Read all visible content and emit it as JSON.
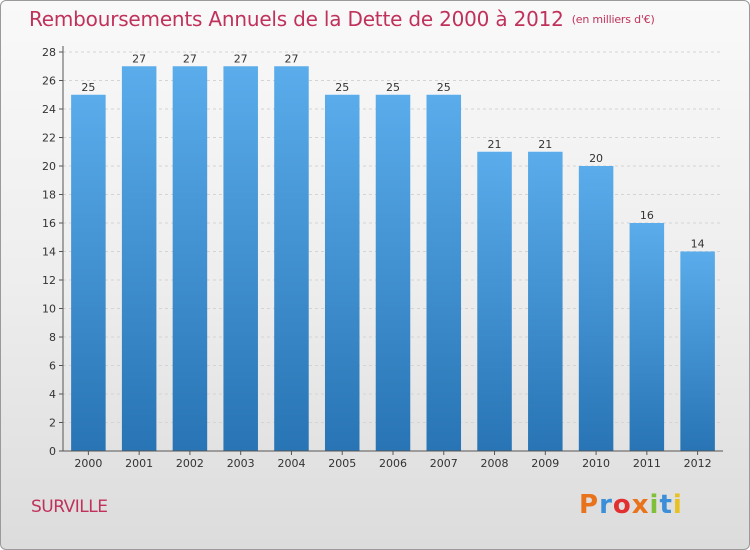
{
  "header": {
    "title": "Remboursements Annuels de la Dette de 2000 à 2012",
    "unit": "(en milliers d'€)"
  },
  "footer": {
    "commune": "SURVILLE",
    "logo_text": "Proxiti",
    "logo_colors": [
      "#e8731a",
      "#3b8ed8",
      "#e03030",
      "#e8731a",
      "#7fbf3a",
      "#3b8ed8",
      "#e8c020"
    ]
  },
  "chart_data": {
    "type": "bar",
    "categories": [
      "2000",
      "2001",
      "2002",
      "2003",
      "2004",
      "2005",
      "2006",
      "2007",
      "2008",
      "2009",
      "2010",
      "2011",
      "2012"
    ],
    "values": [
      25,
      27,
      27,
      27,
      27,
      25,
      25,
      25,
      21,
      21,
      20,
      16,
      14
    ],
    "title": "Remboursements Annuels de la Dette de 2000 à 2012",
    "xlabel": "",
    "ylabel": "",
    "ylim": [
      0,
      28
    ],
    "yticks": [
      0,
      2,
      4,
      6,
      8,
      10,
      12,
      14,
      16,
      18,
      20,
      22,
      24,
      26,
      28
    ],
    "grid": true,
    "bar_color_top": "#5aaceb",
    "bar_color_bottom": "#2874b4",
    "data_labels": true
  }
}
